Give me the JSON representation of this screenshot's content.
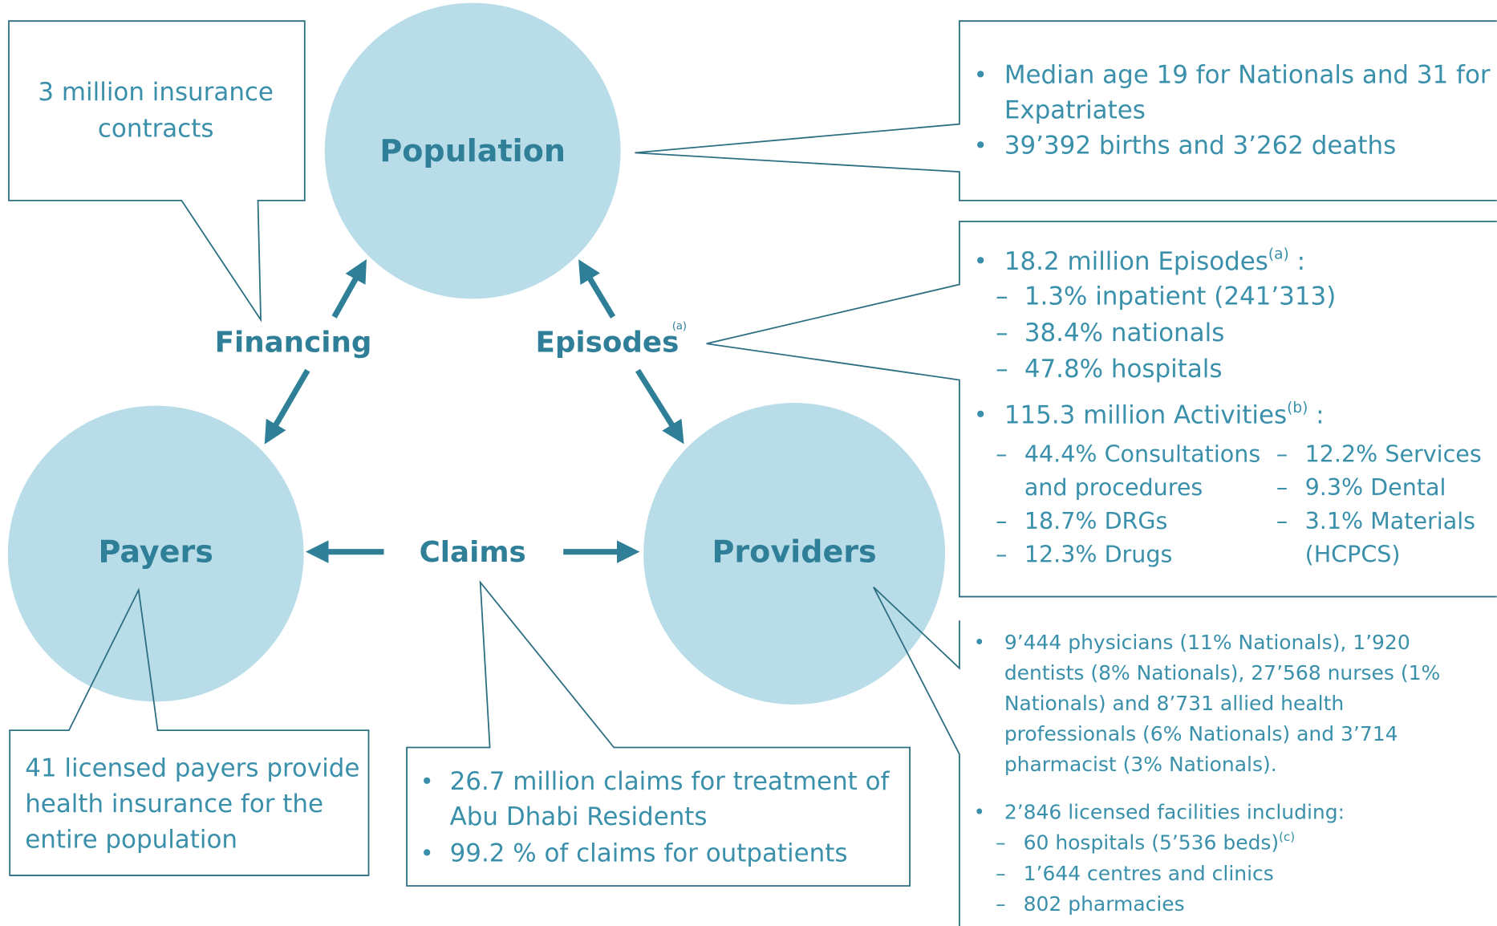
{
  "nodes": {
    "population": "Population",
    "payers": "Payers",
    "providers": "Providers"
  },
  "flows": {
    "financing": "Financing",
    "episodes": {
      "label": "Episodes",
      "note": "(a)"
    },
    "claims": "Claims"
  },
  "financing_box": {
    "lines": [
      "3 million insurance",
      "contracts"
    ]
  },
  "population_box": {
    "bullets": [
      [
        "Median age 19 for Nationals and 31 for",
        "Expatriates"
      ],
      [
        "39’392 births and 3’262 deaths"
      ]
    ]
  },
  "episodes_box": {
    "episodes": {
      "text": "18.2 million Episodes",
      "note": "(a)",
      "tail": " :",
      "items": [
        "1.3% inpatient (241’313)",
        "38.4% nationals",
        "47.8% hospitals"
      ]
    },
    "activities": {
      "text": "115.3 million Activities",
      "note": "(b)",
      "tail": "  :",
      "left": [
        [
          "44.4% Consultations",
          "and procedures"
        ],
        [
          "18.7% DRGs"
        ],
        [
          "12.3% Drugs"
        ]
      ],
      "right": [
        [
          "12.2% Services"
        ],
        [
          "9.3% Dental"
        ],
        [
          "3.1% Materials",
          "(HCPCS)"
        ]
      ]
    }
  },
  "providers_box": {
    "workforce": [
      "9’444 physicians (11% Nationals), 1’920",
      "dentists (8% Nationals), 27’568 nurses (1%",
      "Nationals) and 8’731 allied health",
      "professionals (6% Nationals) and 3’714",
      "pharmacist (3% Nationals)."
    ],
    "facilities": {
      "text": "2’846 licensed facilities including:",
      "hospitals": {
        "text": "60 hospitals (5’536 beds)",
        "note": "(c)"
      },
      "items": [
        "1’644 centres and clinics",
        "802 pharmacies"
      ]
    }
  },
  "payers_box": {
    "lines": [
      "41 licensed payers provide",
      "health insurance for the",
      "entire population"
    ]
  },
  "claims_box": {
    "bullets": [
      [
        "26.7 million claims for treatment of",
        "Abu Dhabi Residents"
      ],
      [
        "99.2 % of claims for outpatients"
      ]
    ]
  }
}
